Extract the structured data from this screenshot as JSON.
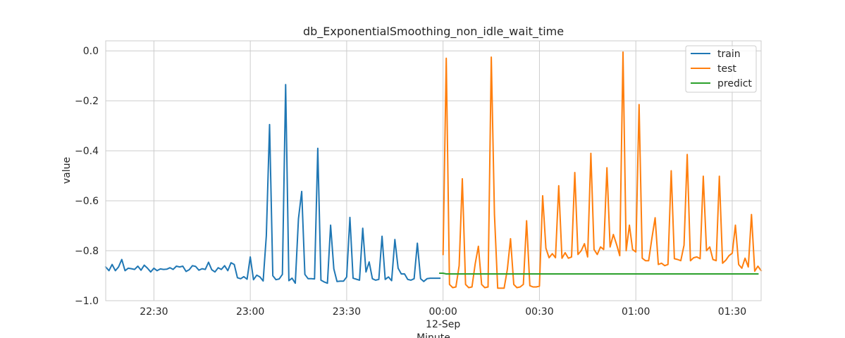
{
  "chart_data": {
    "type": "line",
    "title": "db_ExponentialSmoothing_non_idle_wait_time",
    "xlabel": "Minute",
    "ylabel": "value",
    "ylim": [
      -1.0,
      0.04
    ],
    "xlim": [
      "22:15",
      "01:39"
    ],
    "yticks": [
      {
        "value": -1.0,
        "label": "−1.0"
      },
      {
        "value": -0.8,
        "label": "−0.8"
      },
      {
        "value": -0.6,
        "label": "−0.6"
      },
      {
        "value": -0.4,
        "label": "−0.4"
      },
      {
        "value": -0.2,
        "label": "−0.2"
      },
      {
        "value": 0.0,
        "label": "0.0"
      }
    ],
    "xticks": [
      {
        "t": "22:30",
        "label": "22:30"
      },
      {
        "t": "23:00",
        "label": "23:00"
      },
      {
        "t": "23:30",
        "label": "23:30"
      },
      {
        "t": "00:00",
        "label": "00:00",
        "sublabel": "12-Sep"
      },
      {
        "t": "00:30",
        "label": "00:30"
      },
      {
        "t": "01:00",
        "label": "01:00"
      },
      {
        "t": "01:30",
        "label": "01:30"
      }
    ],
    "grid": true,
    "legend": {
      "position": "top-right"
    },
    "series": [
      {
        "name": "train",
        "color": "#1f77b4",
        "x": [
          "22:15",
          "22:16",
          "22:17",
          "22:18",
          "22:19",
          "22:20",
          "22:21",
          "22:22",
          "22:23",
          "22:24",
          "22:25",
          "22:26",
          "22:27",
          "22:28",
          "22:29",
          "22:30",
          "22:31",
          "22:32",
          "22:33",
          "22:34",
          "22:35",
          "22:36",
          "22:37",
          "22:38",
          "22:39",
          "22:40",
          "22:41",
          "22:42",
          "22:43",
          "22:44",
          "22:45",
          "22:46",
          "22:47",
          "22:48",
          "22:49",
          "22:50",
          "22:51",
          "22:52",
          "22:53",
          "22:54",
          "22:55",
          "22:56",
          "22:57",
          "22:58",
          "22:59",
          "23:00",
          "23:01",
          "23:02",
          "23:03",
          "23:04",
          "23:05",
          "23:06",
          "23:07",
          "23:08",
          "23:09",
          "23:10",
          "23:11",
          "23:12",
          "23:13",
          "23:14",
          "23:15",
          "23:16",
          "23:17",
          "23:18",
          "23:19",
          "23:20",
          "23:21",
          "23:22",
          "23:23",
          "23:24",
          "23:25",
          "23:26",
          "23:27",
          "23:28",
          "23:29",
          "23:30",
          "23:31",
          "23:32",
          "23:33",
          "23:34",
          "23:35",
          "23:36",
          "23:37",
          "23:38",
          "23:39",
          "23:40",
          "23:41",
          "23:42",
          "23:43",
          "23:44",
          "23:45",
          "23:46",
          "23:47",
          "23:48",
          "23:49",
          "23:50",
          "23:51",
          "23:52",
          "23:53",
          "23:54",
          "23:55",
          "23:56",
          "23:57",
          "23:58",
          "23:59"
        ],
        "y": [
          -0.865,
          -0.88,
          -0.855,
          -0.88,
          -0.865,
          -0.835,
          -0.88,
          -0.87,
          -0.872,
          -0.875,
          -0.862,
          -0.878,
          -0.858,
          -0.87,
          -0.885,
          -0.87,
          -0.88,
          -0.873,
          -0.875,
          -0.874,
          -0.868,
          -0.875,
          -0.862,
          -0.865,
          -0.862,
          -0.883,
          -0.876,
          -0.86,
          -0.863,
          -0.878,
          -0.872,
          -0.875,
          -0.846,
          -0.876,
          -0.885,
          -0.868,
          -0.875,
          -0.86,
          -0.88,
          -0.848,
          -0.855,
          -0.908,
          -0.912,
          -0.904,
          -0.914,
          -0.825,
          -0.916,
          -0.898,
          -0.905,
          -0.921,
          -0.74,
          -0.295,
          -0.9,
          -0.916,
          -0.913,
          -0.895,
          -0.135,
          -0.92,
          -0.91,
          -0.93,
          -0.672,
          -0.563,
          -0.895,
          -0.912,
          -0.912,
          -0.913,
          -0.39,
          -0.918,
          -0.925,
          -0.93,
          -0.698,
          -0.873,
          -0.923,
          -0.922,
          -0.922,
          -0.905,
          -0.667,
          -0.91,
          -0.914,
          -0.918,
          -0.71,
          -0.885,
          -0.845,
          -0.912,
          -0.918,
          -0.915,
          -0.742,
          -0.915,
          -0.905,
          -0.92,
          -0.755,
          -0.87,
          -0.893,
          -0.893,
          -0.915,
          -0.918,
          -0.912,
          -0.77,
          -0.912,
          -0.923,
          -0.912,
          -0.91,
          -0.91,
          -0.91,
          -0.91
        ]
      },
      {
        "name": "test",
        "color": "#ff7f0e",
        "x": [
          "00:00",
          "00:01",
          "00:02",
          "00:03",
          "00:04",
          "00:05",
          "00:06",
          "00:07",
          "00:08",
          "00:09",
          "00:10",
          "00:11",
          "00:12",
          "00:13",
          "00:14",
          "00:15",
          "00:16",
          "00:17",
          "00:18",
          "00:19",
          "00:20",
          "00:21",
          "00:22",
          "00:23",
          "00:24",
          "00:25",
          "00:26",
          "00:27",
          "00:28",
          "00:29",
          "00:30",
          "00:31",
          "00:32",
          "00:33",
          "00:34",
          "00:35",
          "00:36",
          "00:37",
          "00:38",
          "00:39",
          "00:40",
          "00:41",
          "00:42",
          "00:43",
          "00:44",
          "00:45",
          "00:46",
          "00:47",
          "00:48",
          "00:49",
          "00:50",
          "00:51",
          "00:52",
          "00:53",
          "00:54",
          "00:55",
          "00:56",
          "00:57",
          "00:58",
          "00:59",
          "01:00",
          "01:01",
          "01:02",
          "01:03",
          "01:04",
          "01:05",
          "01:06",
          "01:07",
          "01:08",
          "01:09",
          "01:10",
          "01:11",
          "01:12",
          "01:13",
          "01:14",
          "01:15",
          "01:16",
          "01:17",
          "01:18",
          "01:19",
          "01:20",
          "01:21",
          "01:22",
          "01:23",
          "01:24",
          "01:25",
          "01:26",
          "01:27",
          "01:28",
          "01:29",
          "01:30",
          "01:31",
          "01:32",
          "01:33",
          "01:34",
          "01:35",
          "01:36",
          "01:37",
          "01:38",
          "01:39"
        ],
        "y": [
          -0.815,
          -0.03,
          -0.935,
          -0.948,
          -0.945,
          -0.86,
          -0.512,
          -0.935,
          -0.948,
          -0.945,
          -0.852,
          -0.782,
          -0.935,
          -0.948,
          -0.945,
          -0.025,
          -0.655,
          -0.95,
          -0.95,
          -0.95,
          -0.875,
          -0.752,
          -0.935,
          -0.948,
          -0.945,
          -0.935,
          -0.68,
          -0.94,
          -0.945,
          -0.945,
          -0.942,
          -0.58,
          -0.79,
          -0.828,
          -0.812,
          -0.828,
          -0.54,
          -0.83,
          -0.808,
          -0.83,
          -0.825,
          -0.487,
          -0.815,
          -0.8,
          -0.772,
          -0.825,
          -0.41,
          -0.795,
          -0.815,
          -0.785,
          -0.795,
          -0.468,
          -0.785,
          -0.735,
          -0.775,
          -0.82,
          -0.005,
          -0.8,
          -0.698,
          -0.795,
          -0.805,
          -0.215,
          -0.83,
          -0.84,
          -0.84,
          -0.75,
          -0.668,
          -0.855,
          -0.85,
          -0.86,
          -0.855,
          -0.48,
          -0.832,
          -0.835,
          -0.84,
          -0.778,
          -0.415,
          -0.84,
          -0.828,
          -0.825,
          -0.832,
          -0.502,
          -0.8,
          -0.785,
          -0.835,
          -0.84,
          -0.502,
          -0.85,
          -0.838,
          -0.82,
          -0.81,
          -0.698,
          -0.855,
          -0.87,
          -0.83,
          -0.865,
          -0.655,
          -0.882,
          -0.862,
          -0.88
        ]
      },
      {
        "name": "predict",
        "color": "#2ca02c",
        "x": [
          "23:59",
          "00:00",
          "00:01",
          "00:05",
          "00:10",
          "00:20",
          "00:30",
          "00:40",
          "00:50",
          "01:00",
          "01:10",
          "01:20",
          "01:30",
          "01:38"
        ],
        "y": [
          -0.89,
          -0.89,
          -0.893,
          -0.893,
          -0.893,
          -0.893,
          -0.893,
          -0.893,
          -0.893,
          -0.893,
          -0.893,
          -0.893,
          -0.893,
          -0.893
        ]
      }
    ]
  }
}
